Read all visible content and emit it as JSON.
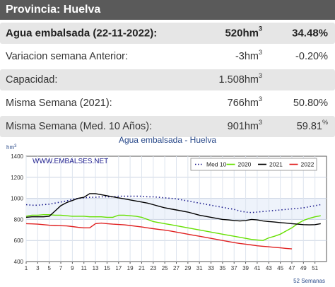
{
  "header": {
    "title": "Provincia: Huelva"
  },
  "stats": {
    "rows": [
      {
        "label": "Agua embalsada (22-11-2022):",
        "value": "520hm",
        "unit_sup": "3",
        "percent": "34.48%",
        "pct_sup": ""
      },
      {
        "label": "Variacion semana Anterior:",
        "value": "-3hm",
        "unit_sup": "3",
        "percent": "-0.20%",
        "pct_sup": ""
      },
      {
        "label": "Capacidad:",
        "value": "1.508hm",
        "unit_sup": "3",
        "percent": "",
        "pct_sup": ""
      },
      {
        "label": "Misma Semana (2021):",
        "value": "766hm",
        "unit_sup": "3",
        "percent": "50.80%",
        "pct_sup": ""
      },
      {
        "label": "Misma Semana (Med. 10 Años):",
        "value": "901hm",
        "unit_sup": "3",
        "percent": "59.81",
        "pct_sup": "%"
      }
    ]
  },
  "chart_data": {
    "type": "line",
    "title": "Agua embalsada - Huelva",
    "ylabel": "hm",
    "ylabel_sup": "3",
    "xlabel": "52 Semanas",
    "watermark": "WWW.EMBALSES.NET",
    "ylim": [
      400,
      1400
    ],
    "yticks": [
      400,
      600,
      800,
      1000,
      1200,
      1400
    ],
    "xlim": [
      1,
      53
    ],
    "xticks": [
      1,
      3,
      5,
      7,
      9,
      11,
      13,
      15,
      17,
      19,
      21,
      23,
      25,
      27,
      29,
      31,
      33,
      35,
      37,
      39,
      41,
      43,
      45,
      47,
      49,
      51
    ],
    "xtick_labels": [
      "1",
      "3",
      "5",
      "7",
      "9",
      "11",
      "13",
      "15",
      "17",
      "19",
      "21",
      "23",
      "25",
      "27",
      "29",
      "31",
      "33",
      "35",
      "37",
      "39",
      "41",
      "43",
      "45",
      "47",
      "49",
      "51"
    ],
    "legend_position": "top-right",
    "grid": true,
    "series": [
      {
        "name": "Med 10",
        "color": "#1a1a8c",
        "dashed": true,
        "x": [
          1,
          2,
          3,
          4,
          5,
          6,
          7,
          8,
          9,
          10,
          11,
          12,
          13,
          14,
          15,
          16,
          17,
          18,
          19,
          20,
          21,
          22,
          23,
          24,
          25,
          26,
          27,
          28,
          29,
          30,
          31,
          32,
          33,
          34,
          35,
          36,
          37,
          38,
          39,
          40,
          41,
          42,
          43,
          44,
          45,
          46,
          47,
          48,
          49,
          50,
          51,
          52
        ],
        "values": [
          940,
          935,
          935,
          940,
          945,
          955,
          965,
          975,
          990,
          1000,
          1005,
          1010,
          1010,
          1015,
          1015,
          1015,
          1020,
          1020,
          1020,
          1020,
          1020,
          1015,
          1015,
          1010,
          1005,
          1000,
          995,
          985,
          975,
          965,
          955,
          945,
          935,
          925,
          915,
          905,
          895,
          880,
          870,
          865,
          870,
          875,
          880,
          885,
          890,
          895,
          900,
          905,
          910,
          920,
          930,
          940
        ]
      },
      {
        "name": "2020",
        "color": "#66e000",
        "dashed": false,
        "x": [
          1,
          2,
          3,
          4,
          5,
          6,
          7,
          8,
          9,
          10,
          11,
          12,
          13,
          14,
          15,
          16,
          17,
          18,
          19,
          20,
          21,
          22,
          23,
          24,
          25,
          26,
          27,
          28,
          29,
          30,
          31,
          32,
          33,
          34,
          35,
          36,
          37,
          38,
          39,
          40,
          41,
          42,
          43,
          44,
          45,
          46,
          47,
          48,
          49,
          50,
          51,
          52
        ],
        "values": [
          830,
          840,
          840,
          845,
          845,
          840,
          840,
          835,
          830,
          830,
          830,
          825,
          825,
          825,
          820,
          820,
          840,
          840,
          835,
          830,
          820,
          800,
          780,
          770,
          760,
          750,
          740,
          730,
          720,
          710,
          700,
          690,
          680,
          670,
          660,
          650,
          640,
          630,
          620,
          610,
          605,
          600,
          625,
          640,
          660,
          690,
          720,
          760,
          790,
          810,
          825,
          835
        ]
      },
      {
        "name": "2021",
        "color": "#000000",
        "dashed": false,
        "x": [
          1,
          2,
          3,
          4,
          5,
          6,
          7,
          8,
          9,
          10,
          11,
          12,
          13,
          14,
          15,
          16,
          17,
          18,
          19,
          20,
          21,
          22,
          23,
          24,
          25,
          26,
          27,
          28,
          29,
          30,
          31,
          32,
          33,
          34,
          35,
          36,
          37,
          38,
          39,
          40,
          41,
          42,
          43,
          44,
          45,
          46,
          47,
          48,
          49,
          50,
          51,
          52
        ],
        "values": [
          820,
          825,
          825,
          825,
          830,
          880,
          930,
          960,
          980,
          1000,
          1010,
          1045,
          1045,
          1035,
          1025,
          1015,
          1005,
          995,
          985,
          975,
          965,
          955,
          940,
          925,
          910,
          900,
          890,
          880,
          870,
          855,
          840,
          830,
          820,
          810,
          800,
          795,
          790,
          785,
          790,
          800,
          795,
          785,
          780,
          775,
          770,
          765,
          760,
          755,
          750,
          748,
          750,
          760
        ]
      },
      {
        "name": "2022",
        "color": "#e02020",
        "dashed": false,
        "x": [
          1,
          2,
          3,
          4,
          5,
          6,
          7,
          8,
          9,
          10,
          11,
          12,
          13,
          14,
          15,
          16,
          17,
          18,
          19,
          20,
          21,
          22,
          23,
          24,
          25,
          26,
          27,
          28,
          29,
          30,
          31,
          32,
          33,
          34,
          35,
          36,
          37,
          38,
          39,
          40,
          41,
          42,
          43,
          44,
          45,
          46,
          47
        ],
        "values": [
          760,
          758,
          755,
          750,
          745,
          742,
          740,
          738,
          732,
          725,
          720,
          720,
          760,
          765,
          760,
          755,
          752,
          748,
          742,
          735,
          728,
          720,
          712,
          705,
          698,
          690,
          680,
          670,
          660,
          650,
          640,
          630,
          620,
          610,
          600,
          590,
          580,
          572,
          565,
          558,
          550,
          545,
          540,
          535,
          530,
          525,
          520
        ]
      }
    ]
  }
}
